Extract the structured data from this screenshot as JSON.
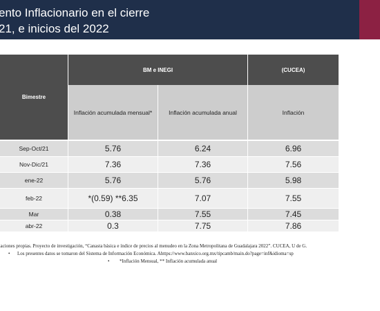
{
  "title": {
    "line1": "ento Inflacionario en el cierre",
    "line2": "21, e inicios del 2022"
  },
  "table": {
    "col_bimestre": "Bimestre",
    "group_inegi": "BM e INEGI",
    "group_cucea": "(CUCEA)",
    "sub_mensual": "Inflación acumulada mensual*",
    "sub_anual": "Inflación acumulada anual",
    "sub_inflacion": "Inflación",
    "rows": [
      {
        "period": "Sep-Oct/21",
        "mensual": "5.76",
        "anual": "6.24",
        "cucea": "6.96"
      },
      {
        "period": "Nov-Dic/21",
        "mensual": "7.36",
        "anual": "7.36",
        "cucea": "7.56"
      },
      {
        "period": "ene-22",
        "mensual": "5.76",
        "anual": "5.76",
        "cucea": "5.98"
      },
      {
        "period": "feb-22",
        "mensual": "*(0.59) **6.35",
        "anual": "7.07",
        "cucea": "7.55"
      },
      {
        "period": "Mar",
        "mensual": "0.38",
        "anual": "7.55",
        "cucea": "7.45"
      },
      {
        "period": "abr-22",
        "mensual": "0.3",
        "anual": "7.75",
        "cucea": "7.86"
      }
    ]
  },
  "footnotes": {
    "line1": "naciones propias. Proyecto de investigación, “Canasta básica e índice de precios al menudeo en la Zona Metropolitana de Guadalajara 2022”. CUCEA, U de G.",
    "line2_bullet": "•",
    "line2": "Los presentes datos se tomaron del Sistema de Información Económica.  Ahttps://www.banxico.org.mx/tipcamb/main.do?page=inf&idioma=sp",
    "line3_bullet": "•",
    "line3": "*Inflación Mensual, ** Inflación acumulada anual"
  }
}
